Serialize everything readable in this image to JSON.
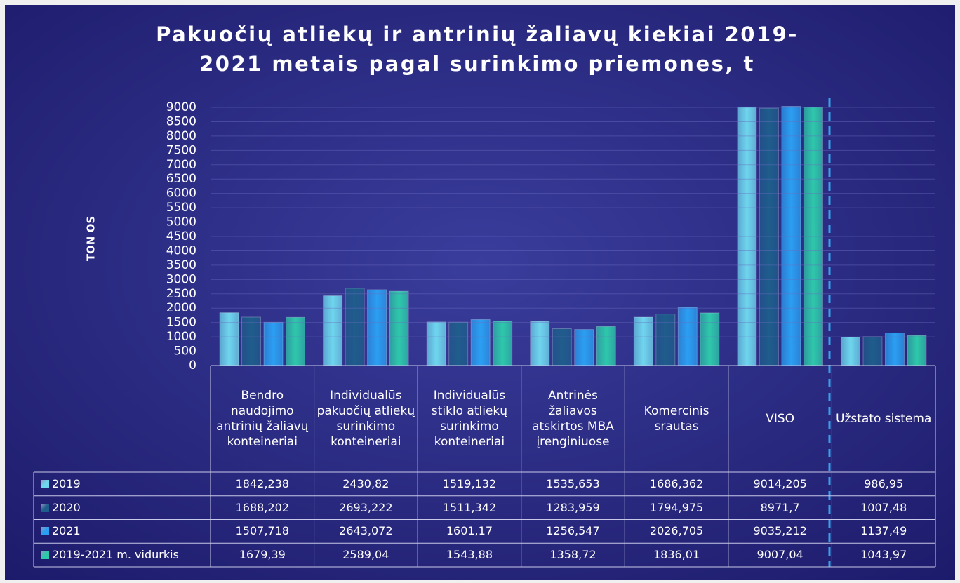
{
  "chart_data": {
    "type": "bar",
    "title": "Pakuočių atliekų ir antrinių žaliavų kiekiai 2019-2021 metais pagal surinkimo priemones, t",
    "y_label": "TON OS",
    "categories": [
      "Bendro naudojimo antrinių žaliavų konteineriai",
      "Individualūs pakuočių atliekų surinkimo konteineriai",
      "Individualūs stiklo atliekų surinkimo konteineriai",
      "Antrinės žaliavos atskirtos MBA įrenginiuose",
      "Komercinis srautas",
      "VISO",
      "Užstato sistema"
    ],
    "series": [
      {
        "name": "2019",
        "color": "#6fd6ee",
        "values": [
          1842.238,
          2430.82,
          1519.132,
          1535.653,
          1686.362,
          9014.205,
          986.95
        ],
        "value_labels": [
          "1842,238",
          "2430,82",
          "1519,132",
          "1535,653",
          "1686,362",
          "9014,205",
          "986,95"
        ]
      },
      {
        "name": "2020",
        "color": "#1f5d8c",
        "values": [
          1688.202,
          2693.222,
          1511.342,
          1283.959,
          1794.975,
          8971.7,
          1007.48
        ],
        "value_labels": [
          "1688,202",
          "2693,222",
          "1511,342",
          "1283,959",
          "1794,975",
          "8971,7",
          "1007,48"
        ]
      },
      {
        "name": "2021",
        "color": "#2b9ff2",
        "values": [
          1507.718,
          2643.072,
          1601.17,
          1256.547,
          2026.705,
          9035.212,
          1137.49
        ],
        "value_labels": [
          "1507,718",
          "2643,072",
          "1601,17",
          "1256,547",
          "2026,705",
          "9035,212",
          "1137,49"
        ]
      },
      {
        "name": "2019-2021 m. vidurkis",
        "color": "#2ec8ab",
        "values": [
          1679.39,
          2589.04,
          1543.88,
          1358.72,
          1836.01,
          9007.04,
          1043.97
        ],
        "value_labels": [
          "1679,39",
          "2589,04",
          "1543,88",
          "1358,72",
          "1836,01",
          "9007,04",
          "1043,97"
        ]
      }
    ],
    "ylim": [
      0,
      9000
    ],
    "yticks": [
      0,
      500,
      1000,
      1500,
      2000,
      2500,
      3000,
      3500,
      4000,
      4500,
      5000,
      5500,
      6000,
      6500,
      7000,
      7500,
      8000,
      8500,
      9000
    ],
    "grid": true,
    "legend": "table"
  }
}
